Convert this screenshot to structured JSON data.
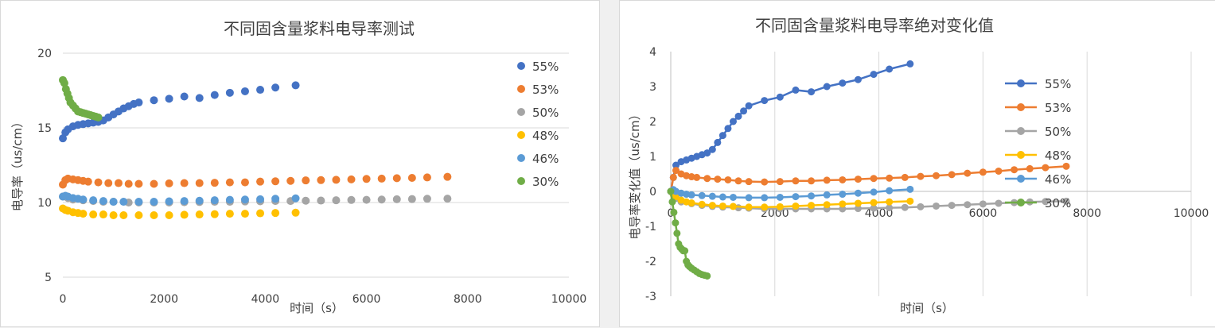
{
  "chart_data": [
    {
      "type": "scatter",
      "title": "不同固含量浆料电导率测试",
      "xlabel": "时间（s）",
      "ylabel": "电导率（us/cm）",
      "xlim": [
        0,
        10000
      ],
      "ylim": [
        5,
        20
      ],
      "xticks": [
        0,
        2000,
        4000,
        6000,
        8000,
        10000
      ],
      "yticks": [
        5,
        10,
        15,
        20
      ],
      "legend_position": "right",
      "grid": "horizontal",
      "series": [
        {
          "name": "55%",
          "color": "#4472c4",
          "x": [
            0,
            50,
            100,
            200,
            300,
            400,
            500,
            600,
            700,
            800,
            900,
            1000,
            1100,
            1200,
            1300,
            1400,
            1500,
            1800,
            2100,
            2400,
            2700,
            3000,
            3300,
            3600,
            3900,
            4200,
            4600
          ],
          "y": [
            14.3,
            14.7,
            14.9,
            15.1,
            15.2,
            15.25,
            15.3,
            15.35,
            15.4,
            15.5,
            15.7,
            15.9,
            16.1,
            16.3,
            16.45,
            16.6,
            16.7,
            16.85,
            16.95,
            17.1,
            17.0,
            17.2,
            17.35,
            17.45,
            17.55,
            17.7,
            17.85
          ]
        },
        {
          "name": "53%",
          "color": "#ed7d31",
          "x": [
            0,
            50,
            100,
            200,
            300,
            400,
            500,
            700,
            900,
            1100,
            1300,
            1500,
            1800,
            2100,
            2400,
            2700,
            3000,
            3300,
            3600,
            3900,
            4200,
            4500,
            4800,
            5100,
            5400,
            5700,
            6000,
            6300,
            6600,
            6900,
            7200,
            7600
          ],
          "y": [
            11.2,
            11.5,
            11.6,
            11.55,
            11.5,
            11.45,
            11.4,
            11.35,
            11.3,
            11.3,
            11.25,
            11.25,
            11.25,
            11.28,
            11.3,
            11.3,
            11.32,
            11.35,
            11.35,
            11.4,
            11.42,
            11.45,
            11.48,
            11.5,
            11.52,
            11.55,
            11.58,
            11.6,
            11.63,
            11.65,
            11.68,
            11.72
          ]
        },
        {
          "name": "50%",
          "color": "#a5a5a5",
          "x": [
            0,
            100,
            200,
            400,
            600,
            800,
            1000,
            1300,
            1500,
            1800,
            2100,
            2400,
            2700,
            3000,
            3300,
            3600,
            3900,
            4200,
            4500,
            4800,
            5100,
            5400,
            5700,
            6000,
            6300,
            6600,
            6900,
            7200,
            7600
          ],
          "y": [
            10.4,
            10.3,
            10.2,
            10.15,
            10.1,
            10.05,
            10.05,
            10.0,
            10.0,
            10.0,
            10.0,
            10.02,
            10.03,
            10.05,
            10.05,
            10.07,
            10.08,
            10.1,
            10.1,
            10.12,
            10.13,
            10.15,
            10.17,
            10.18,
            10.2,
            10.22,
            10.23,
            10.25,
            10.26
          ]
        },
        {
          "name": "48%",
          "color": "#ffc000",
          "x": [
            0,
            50,
            100,
            200,
            300,
            400,
            600,
            800,
            1000,
            1200,
            1500,
            1800,
            2100,
            2400,
            2700,
            3000,
            3300,
            3600,
            3900,
            4200,
            4600
          ],
          "y": [
            9.6,
            9.5,
            9.45,
            9.35,
            9.3,
            9.25,
            9.2,
            9.2,
            9.15,
            9.15,
            9.15,
            9.15,
            9.15,
            9.18,
            9.2,
            9.22,
            9.25,
            9.25,
            9.28,
            9.3,
            9.32
          ]
        },
        {
          "name": "46%",
          "color": "#5b9bd5",
          "x": [
            0,
            50,
            100,
            200,
            300,
            400,
            600,
            800,
            1000,
            1200,
            1500,
            1800,
            2100,
            2400,
            2700,
            3000,
            3300,
            3600,
            3900,
            4200,
            4600
          ],
          "y": [
            10.4,
            10.45,
            10.4,
            10.3,
            10.25,
            10.2,
            10.15,
            10.1,
            10.05,
            10.05,
            10.05,
            10.05,
            10.08,
            10.1,
            10.12,
            10.15,
            10.18,
            10.2,
            10.22,
            10.25,
            10.28
          ]
        },
        {
          "name": "30%",
          "color": "#70ad47",
          "x": [
            0,
            30,
            60,
            90,
            120,
            150,
            200,
            250,
            300,
            350,
            400,
            450,
            500,
            550,
            600,
            650,
            700
          ],
          "y": [
            18.2,
            18.0,
            17.6,
            17.3,
            17.0,
            16.7,
            16.5,
            16.3,
            16.1,
            16.05,
            16.0,
            15.95,
            15.9,
            15.85,
            15.8,
            15.75,
            15.7
          ]
        }
      ]
    },
    {
      "type": "line",
      "title": "不同固含量浆料电导率绝对变化值",
      "xlabel": "时间（s）",
      "ylabel": "电导率变化值（us/cm）",
      "xlim": [
        0,
        10000
      ],
      "ylim": [
        -3,
        4
      ],
      "xticks": [
        0,
        2000,
        4000,
        6000,
        8000,
        10000
      ],
      "yticks": [
        -3,
        -2,
        -1,
        0,
        1,
        2,
        3,
        4
      ],
      "legend_position": "right",
      "grid": "vertical",
      "series": [
        {
          "name": "55%",
          "color": "#4472c4",
          "x": [
            0,
            50,
            100,
            200,
            300,
            400,
            500,
            600,
            700,
            800,
            900,
            1000,
            1100,
            1200,
            1300,
            1400,
            1500,
            1800,
            2100,
            2400,
            2700,
            3000,
            3300,
            3600,
            3900,
            4200,
            4600
          ],
          "y": [
            0.0,
            0.4,
            0.75,
            0.85,
            0.9,
            0.95,
            1.0,
            1.05,
            1.1,
            1.2,
            1.4,
            1.6,
            1.8,
            2.0,
            2.15,
            2.3,
            2.45,
            2.6,
            2.7,
            2.9,
            2.85,
            3.0,
            3.1,
            3.2,
            3.35,
            3.5,
            3.65
          ]
        },
        {
          "name": "53%",
          "color": "#ed7d31",
          "x": [
            0,
            50,
            100,
            200,
            300,
            400,
            500,
            700,
            900,
            1100,
            1300,
            1500,
            1800,
            2100,
            2400,
            2700,
            3000,
            3300,
            3600,
            3900,
            4200,
            4500,
            4800,
            5100,
            5400,
            5700,
            6000,
            6300,
            6600,
            6900,
            7200,
            7600
          ],
          "y": [
            0.0,
            0.4,
            0.6,
            0.5,
            0.45,
            0.42,
            0.4,
            0.37,
            0.35,
            0.33,
            0.3,
            0.28,
            0.27,
            0.28,
            0.3,
            0.3,
            0.32,
            0.33,
            0.35,
            0.37,
            0.38,
            0.4,
            0.43,
            0.45,
            0.48,
            0.52,
            0.55,
            0.58,
            0.62,
            0.65,
            0.68,
            0.72
          ]
        },
        {
          "name": "50%",
          "color": "#a5a5a5",
          "x": [
            0,
            100,
            200,
            400,
            600,
            800,
            1000,
            1300,
            1500,
            1800,
            2100,
            2400,
            2700,
            3000,
            3300,
            3600,
            3900,
            4200,
            4500,
            4800,
            5100,
            5400,
            5700,
            6000,
            6300,
            6600,
            6900,
            7200,
            7600
          ],
          "y": [
            0.0,
            -0.2,
            -0.3,
            -0.35,
            -0.4,
            -0.43,
            -0.45,
            -0.47,
            -0.48,
            -0.5,
            -0.5,
            -0.5,
            -0.5,
            -0.5,
            -0.5,
            -0.49,
            -0.48,
            -0.47,
            -0.46,
            -0.44,
            -0.42,
            -0.4,
            -0.38,
            -0.36,
            -0.34,
            -0.32,
            -0.3,
            -0.29,
            -0.28
          ]
        },
        {
          "name": "48%",
          "color": "#ffc000",
          "x": [
            0,
            50,
            100,
            200,
            300,
            400,
            600,
            800,
            1000,
            1200,
            1500,
            1800,
            2100,
            2400,
            2700,
            3000,
            3300,
            3600,
            3900,
            4200,
            4600
          ],
          "y": [
            0.0,
            -0.1,
            -0.15,
            -0.25,
            -0.3,
            -0.33,
            -0.37,
            -0.4,
            -0.42,
            -0.43,
            -0.45,
            -0.45,
            -0.44,
            -0.42,
            -0.4,
            -0.38,
            -0.36,
            -0.34,
            -0.32,
            -0.3,
            -0.28
          ]
        },
        {
          "name": "46%",
          "color": "#5b9bd5",
          "x": [
            0,
            50,
            100,
            200,
            300,
            400,
            600,
            800,
            1000,
            1200,
            1500,
            1800,
            2100,
            2400,
            2700,
            3000,
            3300,
            3600,
            3900,
            4200,
            4600
          ],
          "y": [
            0.0,
            0.05,
            0.0,
            -0.05,
            -0.08,
            -0.1,
            -0.12,
            -0.14,
            -0.16,
            -0.17,
            -0.18,
            -0.18,
            -0.17,
            -0.15,
            -0.13,
            -0.1,
            -0.08,
            -0.05,
            -0.02,
            0.02,
            0.06
          ]
        },
        {
          "name": "30%",
          "color": "#70ad47",
          "x": [
            0,
            30,
            60,
            90,
            120,
            150,
            180,
            210,
            240,
            270,
            300,
            330,
            360,
            400,
            450,
            500,
            550,
            600,
            650,
            700
          ],
          "y": [
            0.0,
            -0.3,
            -0.6,
            -0.9,
            -1.2,
            -1.5,
            -1.6,
            -1.65,
            -1.7,
            -1.7,
            -2.0,
            -2.1,
            -2.15,
            -2.2,
            -2.25,
            -2.3,
            -2.35,
            -2.38,
            -2.4,
            -2.42
          ]
        }
      ]
    }
  ]
}
